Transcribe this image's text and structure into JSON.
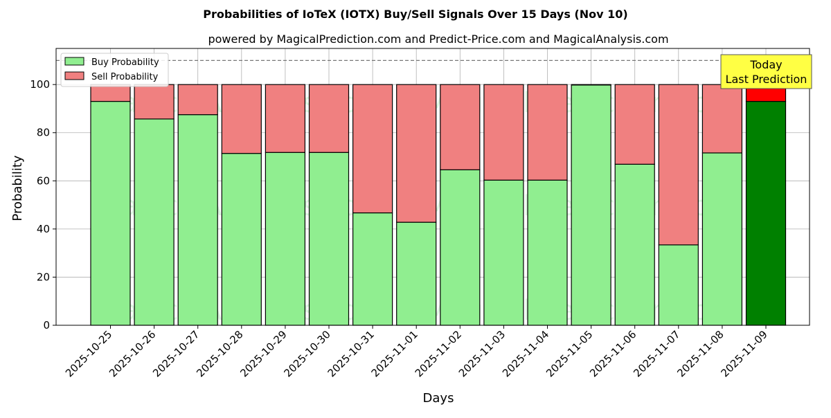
{
  "chart_data": {
    "type": "bar",
    "stacked": true,
    "title": "Probabilities of IoTeX (IOTX) Buy/Sell Signals Over 15 Days (Nov 10)",
    "subtitle": "powered by MagicalPrediction.com and Predict-Price.com and MagicalAnalysis.com",
    "xlabel": "Days",
    "ylabel": "Probability",
    "ylim": [
      0,
      115
    ],
    "yticks": [
      0,
      20,
      40,
      60,
      80,
      100
    ],
    "grid": true,
    "legend_position": "top-left",
    "reference_line": 110,
    "categories": [
      "2025-10-25",
      "2025-10-26",
      "2025-10-27",
      "2025-10-28",
      "2025-10-29",
      "2025-10-30",
      "2025-10-31",
      "2025-11-01",
      "2025-11-02",
      "2025-11-03",
      "2025-11-04",
      "2025-11-05",
      "2025-11-06",
      "2025-11-07",
      "2025-11-08",
      "2025-11-09"
    ],
    "series": [
      {
        "name": "Buy Probability",
        "color": "#90ee90",
        "highlight_color": "#008000",
        "values": [
          93,
          85.7,
          87.5,
          71.4,
          71.8,
          71.8,
          46.7,
          42.8,
          64.6,
          60.3,
          60.3,
          99.8,
          66.9,
          33.4,
          71.6,
          93
        ]
      },
      {
        "name": "Sell Probability",
        "color": "#f08080",
        "highlight_color": "#ff0000",
        "values": [
          7,
          14.3,
          12.5,
          28.6,
          28.2,
          28.2,
          53.3,
          57.2,
          35.4,
          39.7,
          39.7,
          0.2,
          33.1,
          66.6,
          28.4,
          7
        ]
      }
    ],
    "highlight_index": 15,
    "annotation": {
      "line1": "Today",
      "line2": "Last Prediction",
      "color": "#ffff44"
    },
    "watermarks": [
      "MagicalAnalysis.com",
      "MagicalPrediction.com"
    ]
  }
}
